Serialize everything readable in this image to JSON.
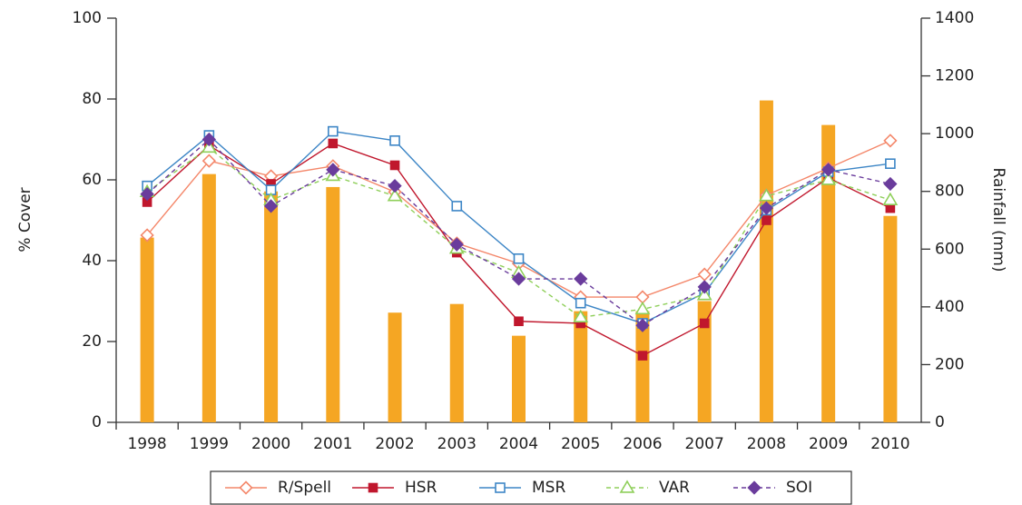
{
  "chart_data": {
    "type": "bar-line",
    "ylabel": "% Cover",
    "y2label": "Rainfall (mm)",
    "categories": [
      "1998",
      "1999",
      "2000",
      "2001",
      "2002",
      "2003",
      "2004",
      "2005",
      "2006",
      "2007",
      "2008",
      "2009",
      "2010"
    ],
    "ylim": [
      0,
      100
    ],
    "yticks": [
      0,
      20,
      40,
      60,
      80,
      100
    ],
    "y2lim": [
      0,
      1400
    ],
    "y2ticks": [
      0,
      200,
      400,
      600,
      800,
      1000,
      1200,
      1400
    ],
    "series": [
      {
        "type": "bar",
        "axis": "y2",
        "color": "#f5a623",
        "values": [
          640,
          860,
          800,
          815,
          380,
          410,
          300,
          385,
          385,
          420,
          1115,
          1030,
          715
        ]
      },
      {
        "name": "R/Spell",
        "type": "line",
        "color": "#f4876a",
        "marker": "diamond-open",
        "dashed": false,
        "values": [
          46.3,
          64.7,
          60.9,
          63.4,
          57,
          44.3,
          39.3,
          31,
          31,
          36.6,
          56.2,
          62.9,
          69.7
        ]
      },
      {
        "name": "HSR",
        "type": "line",
        "color": "#c0172d",
        "marker": "square-filled",
        "dashed": false,
        "values": [
          54.5,
          68.5,
          59,
          69,
          63.6,
          42,
          25,
          24.5,
          16.5,
          24.5,
          50,
          60.5,
          53
        ]
      },
      {
        "name": "MSR",
        "type": "line",
        "color": "#3d86c6",
        "marker": "square-open",
        "dashed": false,
        "values": [
          58.5,
          71,
          57.5,
          72,
          69.7,
          53.5,
          40.5,
          29.5,
          24.5,
          32,
          52.5,
          62,
          64
        ]
      },
      {
        "name": "VAR",
        "type": "line",
        "color": "#8fcf5a",
        "marker": "triangle-open",
        "dashed": true,
        "values": [
          57,
          68,
          55,
          61,
          56,
          43,
          37,
          26,
          28,
          31.5,
          56,
          60,
          55
        ]
      },
      {
        "name": "SOI",
        "type": "line",
        "color": "#6a3c9c",
        "marker": "diamond-filled",
        "dashed": true,
        "values": [
          56.5,
          70,
          53.5,
          62.5,
          58.5,
          44,
          35.5,
          35.5,
          24,
          33.5,
          53,
          62.5,
          59
        ]
      }
    ]
  }
}
